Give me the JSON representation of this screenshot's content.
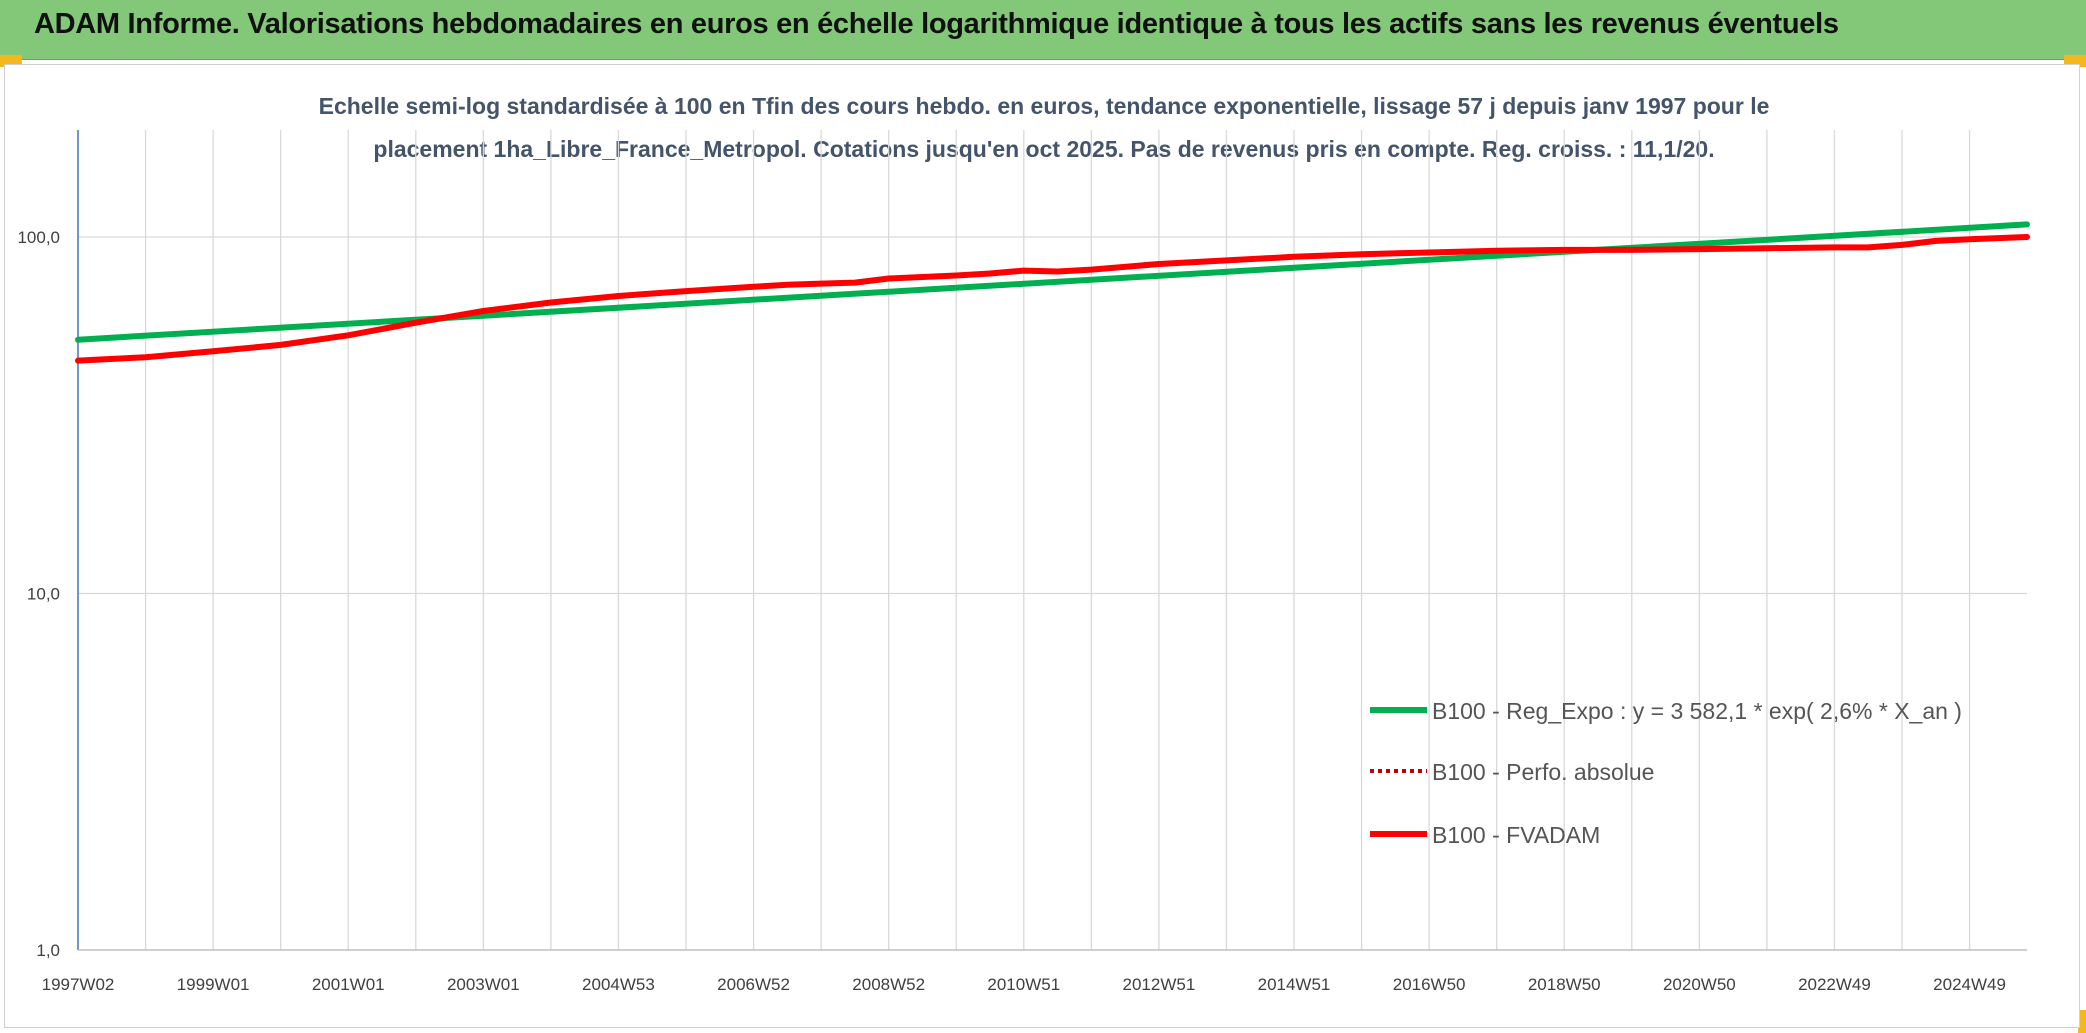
{
  "header": {
    "title": "ADAM Informe. Valorisations hebdomadaires en euros en échelle logarithmique identique à tous les actifs sans les revenus éventuels"
  },
  "colors": {
    "header_bg": "#82c878",
    "corner_accent": "#f2b81c",
    "regression": "#00b050",
    "fvadam": "#ff0000",
    "perfo": "#c00000"
  },
  "chart_data": {
    "type": "line",
    "title_lines": [
      "Echelle semi-log standardisée à 100 en Tfin des cours hebdo. en euros, tendance exponentielle, lissage 57 j depuis janv 1997 pour le",
      "placement 1ha_Libre_France_Metropol. Cotations jusqu'en oct 2025. Pas de revenus pris en compte. Reg. croiss. : 11,1/20."
    ],
    "y_scale": "log",
    "ylim": [
      1,
      180
    ],
    "y_ticks": [
      {
        "value": 1,
        "label": "1,0"
      },
      {
        "value": 10,
        "label": "10,0"
      },
      {
        "value": 100,
        "label": "100,0"
      }
    ],
    "x_range": [
      1997.0,
      2025.85
    ],
    "x_ticks": [
      {
        "x": 1997.0,
        "label": "1997W02"
      },
      {
        "x": 1999.0,
        "label": "1999W01"
      },
      {
        "x": 2001.0,
        "label": "2001W01"
      },
      {
        "x": 2003.0,
        "label": "2003W01"
      },
      {
        "x": 2005.0,
        "label": "2004W53"
      },
      {
        "x": 2007.0,
        "label": "2006W52"
      },
      {
        "x": 2009.0,
        "label": "2008W52"
      },
      {
        "x": 2011.0,
        "label": "2010W51"
      },
      {
        "x": 2013.0,
        "label": "2012W51"
      },
      {
        "x": 2015.0,
        "label": "2014W51"
      },
      {
        "x": 2017.0,
        "label": "2016W50"
      },
      {
        "x": 2019.0,
        "label": "2018W50"
      },
      {
        "x": 2021.0,
        "label": "2020W50"
      },
      {
        "x": 2023.0,
        "label": "2022W49"
      },
      {
        "x": 2025.0,
        "label": "2024W49"
      }
    ],
    "gridlines_x": [
      1998,
      2000,
      2002,
      2004,
      2006,
      2008,
      2010,
      2012,
      2014,
      2016,
      2018,
      2020,
      2022,
      2024
    ],
    "grid": true,
    "legend_position": "bottom-right",
    "series": [
      {
        "name": "B100 - Reg_Expo : y = 3 582,1 * exp( 2,6% *  X_an )",
        "key": "regression",
        "style": "solid",
        "x": [
          1997.0,
          2025.85
        ],
        "y": [
          51.5,
          108.5
        ]
      },
      {
        "name": "B100 - Perfo. absolue",
        "key": "perfo",
        "style": "dotted",
        "x": [],
        "y": []
      },
      {
        "name": "B100 - FVADAM",
        "key": "fvadam",
        "style": "solid",
        "x": [
          1997.0,
          1998.0,
          1999.0,
          2000.0,
          2001.0,
          2002.0,
          2003.0,
          2004.0,
          2005.0,
          2006.0,
          2007.0,
          2007.5,
          2008.0,
          2008.5,
          2009.0,
          2010.0,
          2010.5,
          2011.0,
          2011.5,
          2012.0,
          2013.0,
          2014.0,
          2015.0,
          2016.0,
          2017.0,
          2018.0,
          2019.0,
          2020.0,
          2021.0,
          2022.0,
          2023.0,
          2023.5,
          2024.0,
          2024.5,
          2025.0,
          2025.85
        ],
        "y": [
          45.0,
          46.0,
          47.8,
          49.8,
          53.0,
          57.5,
          62.0,
          65.5,
          68.3,
          70.5,
          72.5,
          73.5,
          74.0,
          74.5,
          76.5,
          78.0,
          79.0,
          80.5,
          80.0,
          81.0,
          84.0,
          86.0,
          88.0,
          89.5,
          90.5,
          91.5,
          92.0,
          92.0,
          92.5,
          93.0,
          93.5,
          93.5,
          95.0,
          97.5,
          98.5,
          100.0
        ]
      }
    ]
  }
}
